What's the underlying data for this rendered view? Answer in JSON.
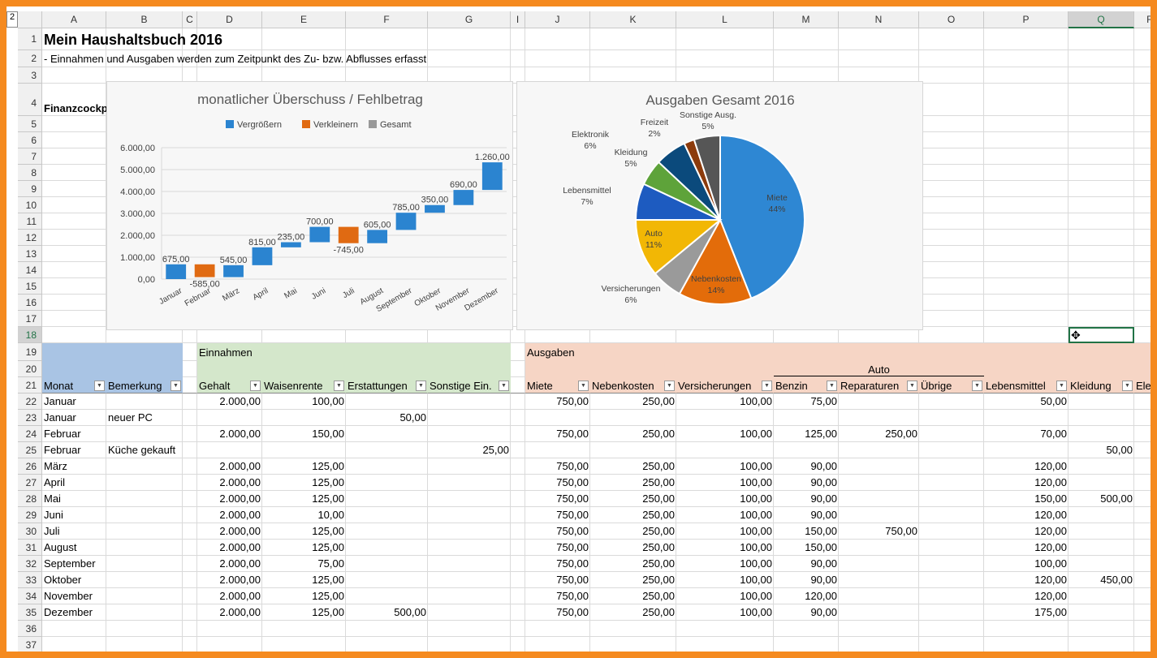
{
  "outline_level": "2",
  "columns": [
    "A",
    "B",
    "C",
    "D",
    "E",
    "F",
    "G",
    "I",
    "J",
    "K",
    "L",
    "M",
    "N",
    "O",
    "P",
    "Q",
    "R"
  ],
  "selected_cell": "Q18",
  "title": "Mein Haushaltsbuch 2016",
  "subtitle": "- Einnahmen und Ausgaben werden zum Zeitpunkt des Zu- bzw. Abflusses erfasst",
  "row4_label": "Finanzcockpi",
  "groups": {
    "einnahmen": "Einnahmen",
    "ausgaben": "Ausgaben",
    "auto": "Auto"
  },
  "headers": [
    "Monat",
    "Bemerkung",
    "Gehalt",
    "Waisenrente",
    "Erstattungen",
    "Sonstige Ein.",
    "Miete",
    "Nebenkosten",
    "Versicherungen",
    "Benzin",
    "Reparaturen",
    "Übrige",
    "Lebensmittel",
    "Kleidung",
    "Ele"
  ],
  "colors": {
    "blue_header": "#a9c4e4",
    "green_header": "#d4e7cb",
    "salmon_header": "#f6d5c5",
    "frame": "#f58a1f",
    "selection": "#217346"
  },
  "rows": [
    [
      "Januar",
      "",
      "2.000,00",
      "100,00",
      "",
      "",
      "750,00",
      "250,00",
      "100,00",
      "75,00",
      "",
      "",
      "50,00",
      ""
    ],
    [
      "Januar",
      "neuer PC",
      "",
      "",
      "50,00",
      "",
      "",
      "",
      "",
      "",
      "",
      "",
      "",
      ""
    ],
    [
      "Februar",
      "",
      "2.000,00",
      "150,00",
      "",
      "",
      "750,00",
      "250,00",
      "100,00",
      "125,00",
      "250,00",
      "",
      "70,00",
      ""
    ],
    [
      "Februar",
      "Küche gekauft",
      "",
      "",
      "",
      "25,00",
      "",
      "",
      "",
      "",
      "",
      "",
      "",
      "50,00"
    ],
    [
      "März",
      "",
      "2.000,00",
      "125,00",
      "",
      "",
      "750,00",
      "250,00",
      "100,00",
      "90,00",
      "",
      "",
      "120,00",
      ""
    ],
    [
      "April",
      "",
      "2.000,00",
      "125,00",
      "",
      "",
      "750,00",
      "250,00",
      "100,00",
      "90,00",
      "",
      "",
      "120,00",
      ""
    ],
    [
      "Mai",
      "",
      "2.000,00",
      "125,00",
      "",
      "",
      "750,00",
      "250,00",
      "100,00",
      "90,00",
      "",
      "",
      "150,00",
      "500,00"
    ],
    [
      "Juni",
      "",
      "2.000,00",
      "10,00",
      "",
      "",
      "750,00",
      "250,00",
      "100,00",
      "90,00",
      "",
      "",
      "120,00",
      ""
    ],
    [
      "Juli",
      "",
      "2.000,00",
      "125,00",
      "",
      "",
      "750,00",
      "250,00",
      "100,00",
      "150,00",
      "750,00",
      "",
      "120,00",
      ""
    ],
    [
      "August",
      "",
      "2.000,00",
      "125,00",
      "",
      "",
      "750,00",
      "250,00",
      "100,00",
      "150,00",
      "",
      "",
      "120,00",
      ""
    ],
    [
      "September",
      "",
      "2.000,00",
      "75,00",
      "",
      "",
      "750,00",
      "250,00",
      "100,00",
      "90,00",
      "",
      "",
      "100,00",
      ""
    ],
    [
      "Oktober",
      "",
      "2.000,00",
      "125,00",
      "",
      "",
      "750,00",
      "250,00",
      "100,00",
      "90,00",
      "",
      "",
      "120,00",
      "450,00"
    ],
    [
      "November",
      "",
      "2.000,00",
      "125,00",
      "",
      "",
      "750,00",
      "250,00",
      "100,00",
      "120,00",
      "",
      "",
      "120,00",
      ""
    ],
    [
      "Dezember",
      "",
      "2.000,00",
      "125,00",
      "500,00",
      "",
      "750,00",
      "250,00",
      "100,00",
      "90,00",
      "",
      "",
      "175,00",
      ""
    ]
  ],
  "chart_data": [
    {
      "type": "waterfall",
      "title": "monatlicher Überschuss / Fehlbetrag",
      "legend": [
        {
          "name": "Vergrößern",
          "color": "#2b84d0"
        },
        {
          "name": "Verkleinern",
          "color": "#e06a12"
        },
        {
          "name": "Gesamt",
          "color": "#999999"
        }
      ],
      "legend_position": "top",
      "categories": [
        "Januar",
        "Februar",
        "März",
        "April",
        "Mai",
        "Juni",
        "Juli",
        "August",
        "September",
        "Oktober",
        "November",
        "Dezember"
      ],
      "values": [
        675,
        -585,
        545,
        815,
        235,
        700,
        -745,
        605,
        785,
        350,
        690,
        1260
      ],
      "labels": [
        "675,00",
        "-585,00",
        "545,00",
        "815,00",
        "235,00",
        "700,00",
        "-745,00",
        "605,00",
        "785,00",
        "350,00",
        "690,00",
        "1.260,00"
      ],
      "yticks": [
        "0,00",
        "1.000,00",
        "2.000,00",
        "3.000,00",
        "4.000,00",
        "5.000,00",
        "6.000,00"
      ],
      "ylim": [
        0,
        6000
      ],
      "grid": true
    },
    {
      "type": "pie",
      "title": "Ausgaben Gesamt 2016",
      "slices": [
        {
          "name": "Miete",
          "pct": "44%",
          "value": 44,
          "color": "#2e87d3"
        },
        {
          "name": "Nebenkosten",
          "pct": "14%",
          "value": 14,
          "color": "#e36c0a"
        },
        {
          "name": "Versicherungen",
          "pct": "6%",
          "value": 6,
          "color": "#9a9a9a"
        },
        {
          "name": "Auto",
          "pct": "11%",
          "value": 11,
          "color": "#f2b705"
        },
        {
          "name": "Lebensmittel",
          "pct": "7%",
          "value": 7,
          "color": "#1d5bc0"
        },
        {
          "name": "Kleidung",
          "pct": "5%",
          "value": 5,
          "color": "#5ea33a"
        },
        {
          "name": "Elektronik",
          "pct": "6%",
          "value": 6,
          "color": "#0b4a7c"
        },
        {
          "name": "Freizeit",
          "pct": "2%",
          "value": 2,
          "color": "#8c3b0c"
        },
        {
          "name": "Sonstige Ausg.",
          "pct": "5%",
          "value": 5,
          "color": "#565656"
        }
      ]
    }
  ]
}
